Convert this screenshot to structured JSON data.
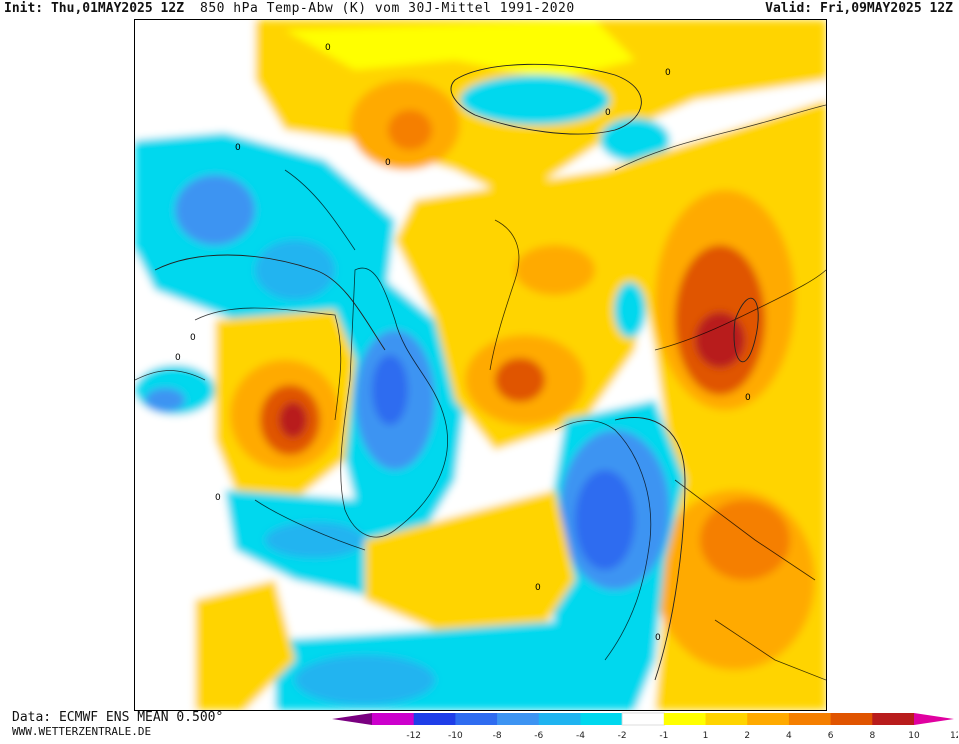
{
  "header": {
    "init_label": "Init:",
    "init_value": "Thu,01MAY2025 12Z",
    "title": "850 hPa Temp-Abw (K) vom 30J-Mittel 1991-2020",
    "valid_label": "Valid:",
    "valid_value": "Fri,09MAY2025 12Z"
  },
  "footer": {
    "source": "Data: ECMWF ENS MEAN 0.500°",
    "site": "WWW.WETTERZENTRALE.DE"
  },
  "legend": {
    "ticks": [
      "-12",
      "-10",
      "-8",
      "-6",
      "-4",
      "-2",
      "-1",
      "1",
      "2",
      "4",
      "6",
      "8",
      "10",
      "12"
    ],
    "colors": [
      "#7a0080",
      "#cc00cc",
      "#1f3ee8",
      "#2f6cf0",
      "#3d94f2",
      "#20b4f0",
      "#00d8ee",
      "#ffffff",
      "#ffff00",
      "#ffd400",
      "#ffaa00",
      "#f57f00",
      "#e05400",
      "#b81c1c",
      "#e000a0"
    ]
  },
  "map": {
    "contour_label": "0"
  }
}
